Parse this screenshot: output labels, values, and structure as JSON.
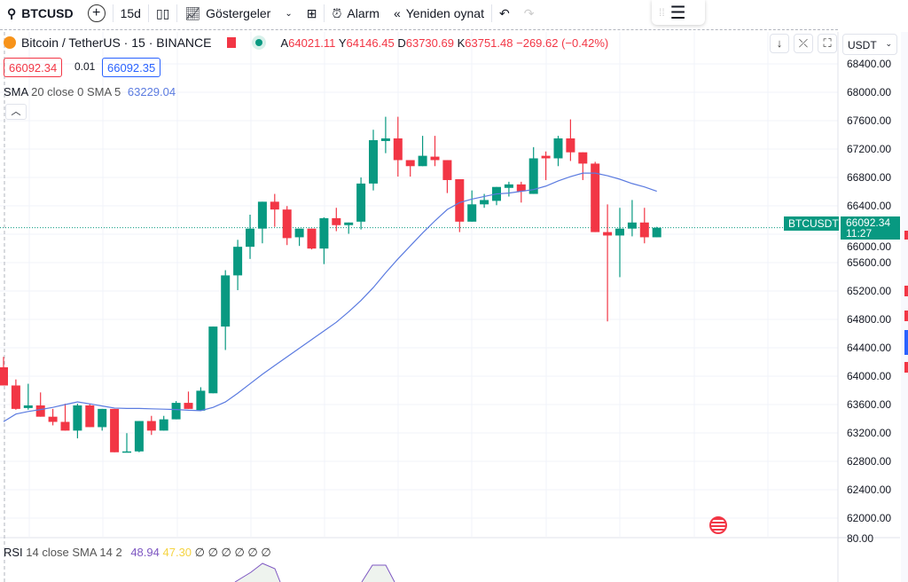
{
  "toolbar": {
    "symbol": "BTCUSD",
    "interval": "15d",
    "indicators": "Göstergeler",
    "alarm": "Alarm",
    "replay": "Yeniden oynat"
  },
  "legend": {
    "title": "Bitcoin / TetherUS · 15 · BINANCE",
    "o_label": "A",
    "o": "64021.11",
    "h_label": "Y",
    "h": "64146.45",
    "l_label": "D",
    "l": "63730.69",
    "c_label": "K",
    "c": "63751.48",
    "change": "−269.62 (−0.42%)"
  },
  "bid": "66092.34",
  "spread": "0.01",
  "ask": "66092.35",
  "sma": {
    "label": "SMA",
    "params": "20 close 0 SMA 5",
    "value": "63229.04"
  },
  "rsi": {
    "label": "RSI",
    "params": "14 close SMA 14 2",
    "value1": "48.94",
    "value2": "47.30",
    "empties": "∅ ∅ ∅ ∅ ∅ ∅"
  },
  "currency": "USDT",
  "price_tag": {
    "symbol": "BTCUSDT",
    "price": "66092.34",
    "countdown": "11:27"
  },
  "rsi_axis": "80.00",
  "colors": {
    "up": "#089981",
    "down": "#f23645",
    "sma": "#5b7be0",
    "rsi": "#7e57c2"
  },
  "chart_data": {
    "type": "candlestick",
    "symbol": "BTCUSDT",
    "ylim": [
      61800,
      68600
    ],
    "yticks": [
      "68400.00",
      "68000.00",
      "67600.00",
      "67200.00",
      "66800.00",
      "66400.00",
      "66000.00",
      "65600.00",
      "65200.00",
      "64800.00",
      "64400.00",
      "64000.00",
      "63600.00",
      "63200.00",
      "62800.00",
      "62400.00",
      "62000.00"
    ],
    "candles": [
      [
        64125,
        64272,
        63869,
        63869
      ],
      [
        63869,
        63954,
        63527,
        63539
      ],
      [
        63551,
        63893,
        63527,
        63588
      ],
      [
        63588,
        63771,
        63429,
        63429
      ],
      [
        63429,
        63539,
        63307,
        63356
      ],
      [
        63356,
        63612,
        63233,
        63233
      ],
      [
        63233,
        63612,
        63124,
        63588
      ],
      [
        63588,
        63612,
        63282,
        63282
      ],
      [
        63282,
        63539,
        63233,
        63539
      ],
      [
        63539,
        63539,
        62928,
        62928
      ],
      [
        62928,
        63197,
        62928,
        62940
      ],
      [
        62940,
        63368,
        62928,
        63368
      ],
      [
        63368,
        63441,
        63172,
        63233
      ],
      [
        63233,
        63441,
        63233,
        63392
      ],
      [
        63392,
        63649,
        63392,
        63624
      ],
      [
        63624,
        63783,
        63539,
        63539
      ],
      [
        63514,
        63844,
        63514,
        63795
      ],
      [
        63759,
        64699,
        63759,
        64699
      ],
      [
        64699,
        65493,
        64369,
        65420
      ],
      [
        65420,
        65921,
        65212,
        65823
      ],
      [
        65823,
        66275,
        65652,
        66079
      ],
      [
        66079,
        66458,
        65872,
        66458
      ],
      [
        66458,
        66568,
        66104,
        66348
      ],
      [
        66348,
        66397,
        65847,
        65945
      ],
      [
        65957,
        66079,
        65835,
        66079
      ],
      [
        66079,
        66079,
        65786,
        65798
      ],
      [
        65798,
        66238,
        65579,
        66226
      ],
      [
        66226,
        66372,
        66043,
        66128
      ],
      [
        66128,
        66165,
        66006,
        66165
      ],
      [
        66177,
        66800,
        66067,
        66714
      ],
      [
        66714,
        67472,
        66617,
        67325
      ],
      [
        67313,
        67655,
        67142,
        67350
      ],
      [
        67350,
        67655,
        66812,
        67044
      ],
      [
        67044,
        67044,
        66812,
        66959
      ],
      [
        66959,
        67386,
        66959,
        67105
      ],
      [
        67093,
        67386,
        66959,
        67044
      ],
      [
        67044,
        67044,
        66580,
        66763
      ],
      [
        66775,
        66775,
        66030,
        66177
      ],
      [
        66177,
        66617,
        66177,
        66421
      ],
      [
        66421,
        66568,
        66372,
        66482
      ],
      [
        66470,
        66666,
        66409,
        66666
      ],
      [
        66653,
        66739,
        66531,
        66702
      ],
      [
        66702,
        66739,
        66446,
        66605
      ],
      [
        66568,
        67227,
        66568,
        67069
      ],
      [
        67105,
        67166,
        66763,
        67069
      ],
      [
        67069,
        67386,
        66959,
        67350
      ],
      [
        67350,
        67618,
        67032,
        67154
      ],
      [
        67154,
        67154,
        66763,
        66995
      ],
      [
        66995,
        67020,
        66030,
        66030
      ],
      [
        66030,
        66421,
        64772,
        65982
      ],
      [
        65982,
        66372,
        65395,
        66079
      ],
      [
        66079,
        66482,
        65970,
        66165
      ],
      [
        66165,
        66372,
        65872,
        65957
      ],
      [
        65957,
        66104,
        65957,
        66092
      ]
    ],
    "sma": [
      63360,
      63466,
      63502,
      63530,
      63560,
      63600,
      63637,
      63610,
      63580,
      63551,
      63545,
      63545,
      63540,
      63535,
      63530,
      63520,
      63514,
      63560,
      63637,
      63759,
      63893,
      64027,
      64150,
      64272,
      64394,
      64516,
      64638,
      64760,
      64907,
      65066,
      65249,
      65456,
      65652,
      65835,
      66018,
      66189,
      66348,
      66446,
      66495,
      66532,
      66568,
      66580,
      66605,
      66629,
      66678,
      66751,
      66812,
      66861,
      66861,
      66824,
      66775,
      66714,
      66666,
      66605
    ],
    "last_price": 66092.34
  }
}
